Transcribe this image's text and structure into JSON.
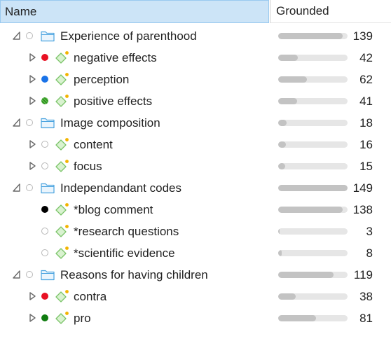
{
  "header": {
    "name_col": "Name",
    "grounded_col": "Grounded"
  },
  "max_grounded": 149,
  "rows": [
    {
      "label": "Experience of parenthood",
      "count": "139",
      "value": 139,
      "level": 0,
      "type": "folder",
      "expander": "expanded",
      "dot": "empty"
    },
    {
      "label": "negative effects",
      "count": "42",
      "value": 42,
      "level": 1,
      "type": "code",
      "expander": "collapsed",
      "dot": "solid",
      "dot_color": "#e81123"
    },
    {
      "label": "perception",
      "count": "62",
      "value": 62,
      "level": 1,
      "type": "code",
      "expander": "collapsed",
      "dot": "solid",
      "dot_color": "#1a73e8"
    },
    {
      "label": "positive effects",
      "count": "41",
      "value": 41,
      "level": 1,
      "type": "code",
      "expander": "collapsed",
      "dot": "pattern",
      "dot_color": "#2e8b1e"
    },
    {
      "label": "Image composition",
      "count": "18",
      "value": 18,
      "level": 0,
      "type": "folder",
      "expander": "expanded",
      "dot": "empty"
    },
    {
      "label": "content",
      "count": "16",
      "value": 16,
      "level": 1,
      "type": "code",
      "expander": "collapsed",
      "dot": "empty"
    },
    {
      "label": "focus",
      "count": "15",
      "value": 15,
      "level": 1,
      "type": "code",
      "expander": "collapsed",
      "dot": "empty"
    },
    {
      "label": "Independandant codes",
      "count": "149",
      "value": 149,
      "level": 0,
      "type": "folder",
      "expander": "expanded",
      "dot": "empty"
    },
    {
      "label": "*blog comment",
      "count": "138",
      "value": 138,
      "level": 1,
      "type": "code",
      "expander": "none",
      "dot": "solid",
      "dot_color": "#000000"
    },
    {
      "label": "*research questions",
      "count": "3",
      "value": 3,
      "level": 1,
      "type": "code",
      "expander": "none",
      "dot": "empty"
    },
    {
      "label": "*scientific evidence",
      "count": "8",
      "value": 8,
      "level": 1,
      "type": "code",
      "expander": "none",
      "dot": "empty"
    },
    {
      "label": "Reasons for having children",
      "count": "119",
      "value": 119,
      "level": 0,
      "type": "folder",
      "expander": "expanded",
      "dot": "empty"
    },
    {
      "label": "contra",
      "count": "38",
      "value": 38,
      "level": 1,
      "type": "code",
      "expander": "collapsed",
      "dot": "solid",
      "dot_color": "#e81123"
    },
    {
      "label": "pro",
      "count": "81",
      "value": 81,
      "level": 1,
      "type": "code",
      "expander": "collapsed",
      "dot": "solid",
      "dot_color": "#107c10"
    }
  ],
  "icons": {
    "expanded": "expanded-triangle-icon",
    "collapsed": "collapsed-triangle-icon",
    "folder": "folder-icon",
    "code": "code-diamond-icon"
  }
}
